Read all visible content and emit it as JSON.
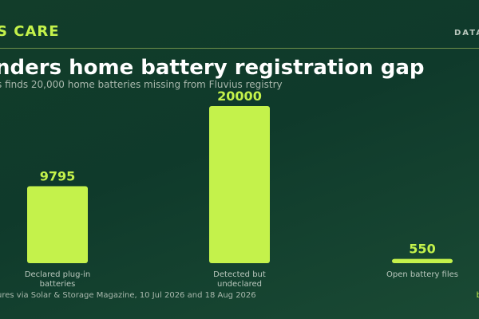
{
  "header": {
    "brand": "S CARE",
    "section": "DATA"
  },
  "chart_data": {
    "type": "bar",
    "title": "nders home battery registration gap",
    "subtitle": "s finds 20,000 home batteries missing from Fluvius registry",
    "categories": [
      [
        "Declared plug-in",
        "batteries"
      ],
      [
        "Detected but",
        "undeclared"
      ],
      [
        "Open battery files"
      ]
    ],
    "values": [
      9795,
      20000,
      550
    ],
    "value_labels": [
      "9795",
      "20000",
      "550"
    ],
    "ylim": [
      0,
      20000
    ],
    "grid": false,
    "bar_color": "#c4f24b"
  },
  "footer": {
    "source": "ures via Solar & Storage Magazine, 10 Jul 2026 and 18 Aug 2026",
    "corner": "b"
  }
}
